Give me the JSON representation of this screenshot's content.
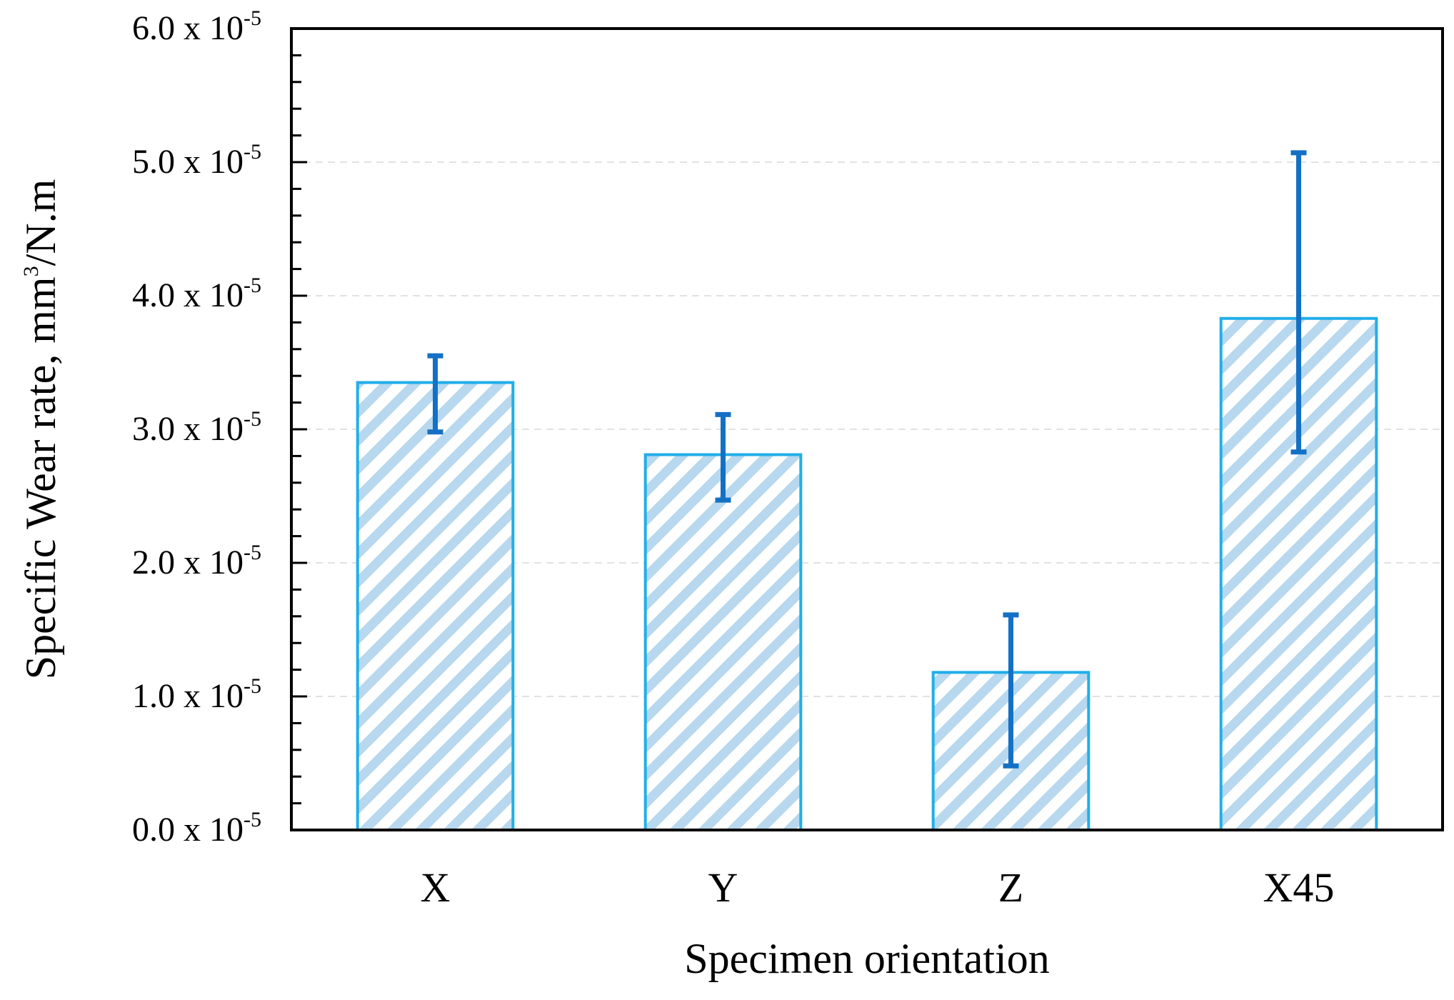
{
  "chart_data": {
    "type": "bar",
    "title": "",
    "xlabel": "Specimen orientation",
    "ylabel": {
      "text": "Specific Wear rate, mm",
      "superscript": "3",
      "suffix": "/N.m"
    },
    "categories": [
      "X",
      "Y",
      "Z",
      "X45"
    ],
    "values": [
      3.35,
      2.81,
      1.18,
      3.83
    ],
    "error_low": [
      2.98,
      2.47,
      0.48,
      2.83
    ],
    "error_high": [
      3.55,
      3.11,
      1.61,
      5.07
    ],
    "ylim": [
      0,
      6
    ],
    "yticks": [
      {
        "value": 0,
        "base": "0.0 x 10",
        "exponent": "-5"
      },
      {
        "value": 1,
        "base": "1.0 x 10",
        "exponent": "-5"
      },
      {
        "value": 2,
        "base": "2.0 x 10",
        "exponent": "-5"
      },
      {
        "value": 3,
        "base": "3.0 x 10",
        "exponent": "-5"
      },
      {
        "value": 4,
        "base": "4.0 x 10",
        "exponent": "-5"
      },
      {
        "value": 5,
        "base": "5.0 x 10",
        "exponent": "-5"
      },
      {
        "value": 6,
        "base": "6.0 x 10",
        "exponent": "-5"
      }
    ],
    "minor_tick_step": 0.2,
    "value_scale": "x 10^-5 mm3/N.m",
    "grid": "horizontal dashed",
    "legend": "none",
    "colors": {
      "bar_outline": "#21aee9",
      "bar_hatch": "#b7d8ee",
      "error_bar": "#1470c4",
      "grid": "#d9d9d9",
      "axis": "#000000"
    }
  }
}
